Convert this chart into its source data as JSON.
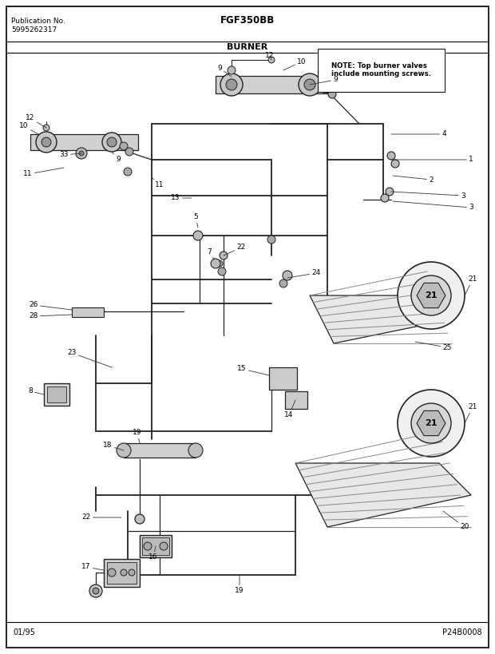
{
  "title_left_line1": "Publication No.",
  "title_left_line2": "5995262317",
  "title_center": "FGF350BB",
  "title_center2": "BURNER",
  "note_text": "NOTE: Top burner valves\ninclude mounting screws.",
  "footer_left": "01/95",
  "footer_right": "P24B0008",
  "bg_color": "#ffffff",
  "text_color": "#000000",
  "line_color": "#333333",
  "border_color": "#000000"
}
